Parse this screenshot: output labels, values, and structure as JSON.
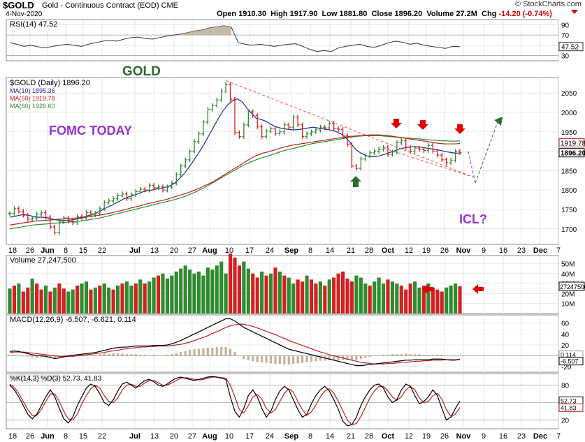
{
  "header": {
    "symbol": "$GOLD",
    "name": "Gold - Continuous Contract (EOD) CME",
    "date": "4-Nov-2020",
    "open_label": "Open",
    "open": "1910.30",
    "high_label": "High",
    "high": "1917.90",
    "low_label": "Low",
    "low": "1881.80",
    "close_label": "Close",
    "close": "1896.20",
    "volume_label": "Volume",
    "volume": "27.2M",
    "chg_label": "Chg",
    "chg": "-14.20 (-0.74%)",
    "source": "© StockCharts.com"
  },
  "annotations": {
    "gold": "GOLD",
    "fomc": "FOMC TODAY",
    "icl": "ICL?"
  },
  "colors": {
    "up": "#2e8b2e",
    "down": "#d42020",
    "ma10": "#1c2c8c",
    "ma50": "#c02020",
    "ma60": "#2e8b2e",
    "annotation": "#9b30d0",
    "gold_label": "#2e6b2e",
    "arrow_red": "#e00000",
    "arrow_green": "#2e6b2e"
  },
  "chart_data": [
    {
      "type": "line",
      "title": "RSI(14) 47.52",
      "series": [
        {
          "name": "RSI(14)",
          "values": [
            55,
            52,
            48,
            50,
            47,
            45,
            48,
            50,
            52,
            50,
            48,
            52,
            55,
            58,
            60,
            58,
            62,
            65,
            66,
            63,
            62,
            65,
            68,
            70,
            72,
            75,
            78,
            80,
            84,
            86,
            88,
            85,
            55,
            52,
            50,
            52,
            50,
            48,
            50,
            52,
            53,
            48,
            42,
            38,
            40,
            38,
            45,
            48,
            50,
            52,
            48,
            46,
            50,
            55,
            58,
            56,
            52,
            54,
            50,
            48,
            46,
            44,
            48,
            47.52
          ]
        }
      ],
      "y_ticks": [
        90,
        70,
        50,
        30
      ],
      "current": "47.52"
    },
    {
      "type": "line",
      "title": "$GOLD (Daily) 1896.20",
      "ylim": [
        1660,
        2090
      ],
      "y_ticks": [
        2050,
        2000,
        1950,
        1900,
        1850,
        1800,
        1750,
        1700
      ],
      "price_tags": [
        "1919.78",
        "1896.20"
      ],
      "legend": [
        "$GOLD (Daily) 1896.20",
        "MA(10) 1895.36",
        "MA(50) 1919.78",
        "MA(60) 1926.60"
      ],
      "x_tick_labels": [
        "18",
        "26",
        "Jun",
        "8",
        "15",
        "22",
        "Jul",
        "13",
        "20",
        "27",
        "Aug",
        "10",
        "17",
        "24",
        "Sep",
        "8",
        "14",
        "21",
        "28",
        "Oct",
        "12",
        "19",
        "26",
        "Nov",
        "9",
        "16",
        "23",
        "Dec",
        "7"
      ],
      "close": [
        1740,
        1752,
        1745,
        1735,
        1725,
        1728,
        1738,
        1742,
        1730,
        1705,
        1690,
        1718,
        1728,
        1720,
        1716,
        1732,
        1728,
        1742,
        1736,
        1740,
        1752,
        1768,
        1772,
        1778,
        1786,
        1790,
        1778,
        1788,
        1796,
        1802,
        1800,
        1812,
        1806,
        1808,
        1800,
        1808,
        1818,
        1840,
        1862,
        1878,
        1900,
        1925,
        1945,
        1975,
        2008,
        2018,
        2032,
        2055,
        2072,
        2034,
        1948,
        1938,
        1968,
        2002,
        1992,
        1963,
        1938,
        1952,
        1958,
        1946,
        1950,
        1968,
        1962,
        1988,
        1968,
        1938,
        1945,
        1950,
        1955,
        1962,
        1960,
        1972,
        1958,
        1956,
        1940,
        1918,
        1862,
        1856,
        1880,
        1888,
        1896,
        1900,
        1905,
        1910,
        1892,
        1898,
        1922,
        1928,
        1910,
        1900,
        1908,
        1905,
        1902,
        1915,
        1900,
        1890,
        1878,
        1870,
        1877,
        1900,
        1896.2
      ],
      "ma10": [
        1730,
        1732,
        1735,
        1737,
        1735,
        1732,
        1730,
        1730,
        1728,
        1725,
        1723,
        1722,
        1722,
        1723,
        1725,
        1728,
        1732,
        1736,
        1740,
        1745,
        1752,
        1758,
        1764,
        1770,
        1777,
        1782,
        1786,
        1790,
        1795,
        1798,
        1800,
        1803,
        1805,
        1808,
        1812,
        1820,
        1832,
        1845,
        1862,
        1880,
        1898,
        1918,
        1940,
        1962,
        1984,
        2004,
        2020,
        2030,
        2035,
        2028,
        2012,
        1998,
        1985,
        1982,
        1978,
        1970,
        1964,
        1960,
        1958,
        1956,
        1955,
        1956,
        1958,
        1960,
        1962,
        1960,
        1958,
        1956,
        1954,
        1950,
        1944,
        1934,
        1920,
        1905,
        1896,
        1890,
        1886,
        1886,
        1888,
        1892,
        1896,
        1900,
        1905,
        1908,
        1910,
        1912,
        1912,
        1910,
        1908,
        1906,
        1904,
        1902,
        1899,
        1897,
        1895,
        1895.36
      ],
      "ma50": [
        1710,
        1712,
        1714,
        1716,
        1718,
        1720,
        1721,
        1722,
        1723,
        1724,
        1725,
        1726,
        1727,
        1728,
        1729,
        1730,
        1732,
        1734,
        1736,
        1738,
        1741,
        1744,
        1747,
        1750,
        1754,
        1757,
        1760,
        1764,
        1767,
        1770,
        1773,
        1776,
        1780,
        1784,
        1788,
        1792,
        1797,
        1802,
        1808,
        1814,
        1820,
        1828,
        1836,
        1844,
        1852,
        1860,
        1868,
        1876,
        1884,
        1890,
        1895,
        1898,
        1902,
        1906,
        1910,
        1913,
        1916,
        1918,
        1920,
        1922,
        1924,
        1926,
        1928,
        1930,
        1932,
        1934,
        1936,
        1938,
        1939,
        1940,
        1941,
        1942,
        1942,
        1942,
        1941,
        1940,
        1938,
        1936,
        1934,
        1932,
        1930,
        1928,
        1926,
        1924,
        1922,
        1920,
        1919,
        1919,
        1919,
        1919.78
      ],
      "ma60": [
        1700,
        1702,
        1704,
        1706,
        1708,
        1710,
        1711,
        1712,
        1713,
        1714,
        1715,
        1716,
        1717,
        1718,
        1719,
        1720,
        1722,
        1724,
        1726,
        1728,
        1731,
        1734,
        1737,
        1740,
        1743,
        1746,
        1749,
        1752,
        1755,
        1758,
        1761,
        1764,
        1767,
        1770,
        1773,
        1776,
        1780,
        1784,
        1789,
        1794,
        1800,
        1806,
        1813,
        1820,
        1827,
        1834,
        1841,
        1848,
        1855,
        1862,
        1868,
        1873,
        1878,
        1882,
        1886,
        1890,
        1894,
        1898,
        1902,
        1905,
        1908,
        1911,
        1914,
        1917,
        1920,
        1922,
        1924,
        1926,
        1928,
        1930,
        1932,
        1934,
        1936,
        1938,
        1939,
        1940,
        1940,
        1940,
        1940,
        1939,
        1938,
        1937,
        1936,
        1935,
        1934,
        1933,
        1932,
        1931,
        1930,
        1929,
        1928,
        1927,
        1927,
        1926,
        1926,
        1926.6
      ]
    },
    {
      "type": "bar",
      "title": "Volume 27,247,500",
      "y_ticks": [
        "50M",
        "40M",
        "30M",
        "20M",
        "10M"
      ],
      "current": "27247500",
      "values": [
        25,
        28,
        30,
        22,
        26,
        35,
        30,
        24,
        28,
        22,
        26,
        30,
        25,
        22,
        24,
        28,
        30,
        32,
        24,
        26,
        28,
        30,
        26,
        24,
        28,
        30,
        32,
        28,
        30,
        34,
        30,
        32,
        36,
        38,
        40,
        35,
        38,
        42,
        45,
        48,
        44,
        40,
        42,
        38,
        46,
        44,
        48,
        52,
        40,
        60,
        56,
        48,
        52,
        45,
        40,
        36,
        42,
        38,
        40,
        46,
        42,
        38,
        36,
        30,
        34,
        32,
        38,
        34,
        30,
        32,
        28,
        34,
        36,
        40,
        42,
        35,
        32,
        38,
        36,
        30,
        28,
        32,
        36,
        30,
        34,
        32,
        30,
        28,
        24,
        30,
        32,
        26,
        28,
        30,
        26,
        24,
        22,
        26,
        28,
        30,
        27.25
      ],
      "down": [
        0,
        1,
        0,
        1,
        1,
        0,
        1,
        1,
        0,
        1,
        0,
        1,
        1,
        0,
        0,
        1,
        0,
        0,
        1,
        0,
        1,
        0,
        0,
        1,
        0,
        1,
        0,
        0,
        1,
        0,
        1,
        0,
        0,
        1,
        0,
        0,
        0,
        0,
        0,
        0,
        0,
        0,
        0,
        0,
        0,
        0,
        0,
        0,
        0,
        1,
        1,
        1,
        0,
        0,
        1,
        1,
        0,
        1,
        0,
        1,
        0,
        1,
        0,
        0,
        1,
        1,
        0,
        1,
        1,
        0,
        1,
        0,
        1,
        1,
        1,
        1,
        1,
        0,
        0,
        0,
        1,
        0,
        0,
        0,
        1,
        0,
        0,
        1,
        1,
        1,
        0,
        0,
        1,
        0,
        1,
        1,
        1,
        0,
        0,
        0,
        1
      ]
    },
    {
      "type": "line",
      "title": "MACD(12,26,9) -6.507, -6.621, 0.114",
      "y_ticks": [
        60,
        40,
        20,
        0,
        -20
      ],
      "current": [
        "0.114",
        "-6.507"
      ],
      "macd": [
        8,
        9,
        8,
        6,
        4,
        2,
        0,
        0,
        -1,
        -3,
        -5,
        -4,
        -2,
        0,
        1,
        2,
        3,
        4,
        5,
        6,
        8,
        10,
        12,
        14,
        15,
        16,
        16,
        17,
        18,
        18,
        18,
        18,
        19,
        19,
        19,
        20,
        22,
        25,
        28,
        32,
        36,
        40,
        44,
        48,
        52,
        56,
        60,
        64,
        68,
        68,
        64,
        58,
        52,
        48,
        44,
        40,
        36,
        32,
        28,
        24,
        20,
        16,
        12,
        10,
        8,
        6,
        4,
        2,
        0,
        -2,
        -4,
        -6,
        -8,
        -10,
        -12,
        -14,
        -16,
        -18,
        -18,
        -17,
        -16,
        -15,
        -14,
        -13,
        -12,
        -11,
        -10,
        -9,
        -8,
        -8,
        -7,
        -7,
        -7,
        -7,
        -6,
        -6,
        -6,
        -7,
        -8,
        -8,
        -6.507
      ],
      "signal": [
        6,
        7,
        7,
        7,
        6,
        5,
        4,
        3,
        2,
        1,
        0,
        -1,
        -1,
        -1,
        -1,
        0,
        1,
        2,
        3,
        4,
        5,
        6,
        8,
        9,
        10,
        12,
        13,
        14,
        15,
        16,
        16,
        17,
        17,
        18,
        18,
        18,
        19,
        20,
        21,
        23,
        25,
        28,
        31,
        34,
        37,
        41,
        44,
        48,
        52,
        55,
        57,
        58,
        58,
        56,
        54,
        51,
        48,
        45,
        42,
        39,
        35,
        32,
        28,
        25,
        22,
        19,
        16,
        13,
        10,
        7,
        5,
        2,
        0,
        -2,
        -4,
        -6,
        -8,
        -10,
        -12,
        -13,
        -14,
        -15,
        -15,
        -15,
        -14,
        -14,
        -13,
        -12,
        -12,
        -11,
        -10,
        -10,
        -9,
        -9,
        -8,
        -8,
        -8,
        -7,
        -7,
        -7,
        -6.621
      ]
    },
    {
      "type": "line",
      "title": "%K(14,3) %D(3) 52.73, 41.83",
      "y_ticks": [
        80,
        50,
        20
      ],
      "current": [
        "52.73",
        "41.83"
      ],
      "k": [
        80,
        72,
        60,
        45,
        30,
        22,
        30,
        45,
        60,
        72,
        60,
        40,
        22,
        15,
        25,
        45,
        60,
        75,
        82,
        78,
        65,
        50,
        45,
        55,
        70,
        82,
        85,
        80,
        75,
        82,
        88,
        90,
        86,
        80,
        78,
        82,
        88,
        92,
        94,
        92,
        90,
        88,
        90,
        92,
        94,
        95,
        94,
        92,
        90,
        60,
        35,
        25,
        40,
        62,
        72,
        60,
        40,
        25,
        35,
        55,
        70,
        78,
        72,
        55,
        38,
        25,
        30,
        48,
        62,
        72,
        78,
        70,
        55,
        38,
        18,
        10,
        12,
        25,
        45,
        60,
        72,
        80,
        82,
        75,
        60,
        50,
        55,
        72,
        82,
        78,
        62,
        48,
        52,
        60,
        72,
        62,
        40,
        20,
        25,
        40,
        52.73
      ],
      "d": [
        82,
        76,
        66,
        52,
        38,
        28,
        28,
        38,
        52,
        65,
        65,
        52,
        35,
        22,
        20,
        30,
        48,
        62,
        74,
        80,
        75,
        62,
        52,
        50,
        58,
        72,
        80,
        82,
        78,
        78,
        84,
        88,
        88,
        84,
        80,
        80,
        84,
        88,
        92,
        93,
        92,
        90,
        89,
        90,
        92,
        94,
        94,
        93,
        92,
        80,
        60,
        38,
        32,
        45,
        60,
        64,
        56,
        40,
        32,
        38,
        52,
        66,
        74,
        68,
        52,
        38,
        28,
        34,
        46,
        60,
        70,
        74,
        66,
        52,
        36,
        20,
        12,
        14,
        26,
        42,
        58,
        70,
        78,
        78,
        70,
        60,
        54,
        60,
        72,
        78,
        72,
        58,
        50,
        52,
        62,
        66,
        56,
        38,
        26,
        30,
        41.83
      ]
    }
  ]
}
